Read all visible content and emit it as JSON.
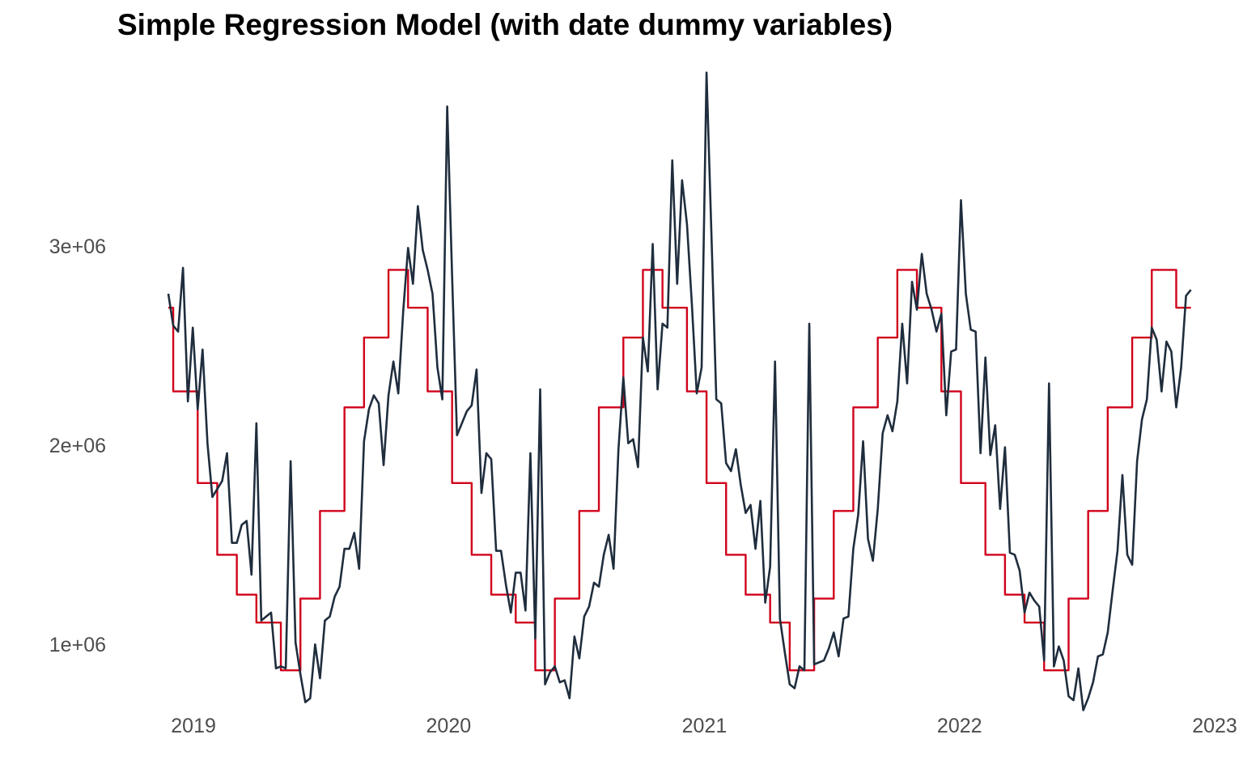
{
  "chart_data": {
    "type": "line",
    "title": "Simple Regression Model (with date dummy variables)",
    "xlabel": "",
    "ylabel": "",
    "x_ticks": [
      "2019",
      "2020",
      "2021",
      "2022",
      "2023"
    ],
    "y_ticks": [
      {
        "label": "1e+06",
        "value": 1000000
      },
      {
        "label": "2e+06",
        "value": 2000000
      },
      {
        "label": "3e+06",
        "value": 3000000
      }
    ],
    "xlim": [
      "2018-11-26",
      "2023-01-01"
    ],
    "ylim": [
      550000,
      3950000
    ],
    "grid": false,
    "legend": "none",
    "colors": {
      "actual": "#1f2d3d",
      "fitted": "#d0021b"
    },
    "start_date": "2018-11-26",
    "series": [
      {
        "key": "actual",
        "values": [
          2760000,
          2600000,
          2570000,
          2890000,
          2220000,
          2590000,
          2180000,
          2480000,
          2010000,
          1740000,
          1780000,
          1820000,
          1960000,
          1510000,
          1510000,
          1600000,
          1620000,
          1350000,
          2110000,
          1120000,
          1140000,
          1160000,
          880000,
          890000,
          880000,
          1920000,
          1010000,
          850000,
          710000,
          730000,
          1000000,
          830000,
          1120000,
          1140000,
          1240000,
          1290000,
          1480000,
          1480000,
          1560000,
          1380000,
          2020000,
          2180000,
          2250000,
          2210000,
          1900000,
          2250000,
          2420000,
          2260000,
          2670000,
          2990000,
          2810000,
          3200000,
          2980000,
          2880000,
          2760000,
          2390000,
          2230000,
          3700000,
          2850000,
          2050000,
          2110000,
          2170000,
          2200000,
          2380000,
          1760000,
          1960000,
          1930000,
          1470000,
          1470000,
          1300000,
          1160000,
          1360000,
          1360000,
          1170000,
          1960000,
          1030000,
          2280000,
          800000,
          860000,
          890000,
          810000,
          820000,
          730000,
          1040000,
          930000,
          1140000,
          1190000,
          1310000,
          1290000,
          1450000,
          1550000,
          1380000,
          1980000,
          2340000,
          2010000,
          2030000,
          1890000,
          2540000,
          2370000,
          3010000,
          2280000,
          2610000,
          2590000,
          3430000,
          2810000,
          3330000,
          3110000,
          2710000,
          2260000,
          2390000,
          3870000,
          3060000,
          2230000,
          2210000,
          1910000,
          1870000,
          1980000,
          1800000,
          1660000,
          1700000,
          1480000,
          1720000,
          1210000,
          1390000,
          2420000,
          1130000,
          960000,
          800000,
          780000,
          890000,
          870000,
          2610000,
          900000,
          910000,
          920000,
          980000,
          1060000,
          940000,
          1130000,
          1140000,
          1480000,
          1650000,
          2020000,
          1530000,
          1420000,
          1680000,
          2060000,
          2150000,
          2070000,
          2220000,
          2610000,
          2310000,
          2820000,
          2680000,
          2960000,
          2760000,
          2680000,
          2570000,
          2660000,
          2150000,
          2470000,
          2480000,
          3230000,
          2760000,
          2580000,
          2570000,
          1960000,
          2440000,
          1950000,
          2100000,
          1680000,
          1990000,
          1460000,
          1450000,
          1370000,
          1160000,
          1260000,
          1220000,
          1190000,
          920000,
          2310000,
          890000,
          990000,
          920000,
          740000,
          720000,
          880000,
          670000,
          730000,
          810000,
          940000,
          950000,
          1060000,
          1270000,
          1470000,
          1850000,
          1450000,
          1400000,
          1920000,
          2130000,
          2230000,
          2590000,
          2530000,
          2270000,
          2520000,
          2470000,
          2190000,
          2390000,
          2750000,
          2780000
        ]
      },
      {
        "key": "fitted",
        "monthly_pattern": [
          1810000,
          1450000,
          1250000,
          1110000,
          870000,
          1230000,
          1670000,
          2190000,
          2540000,
          2880000,
          2690000,
          2270000
        ]
      }
    ]
  }
}
